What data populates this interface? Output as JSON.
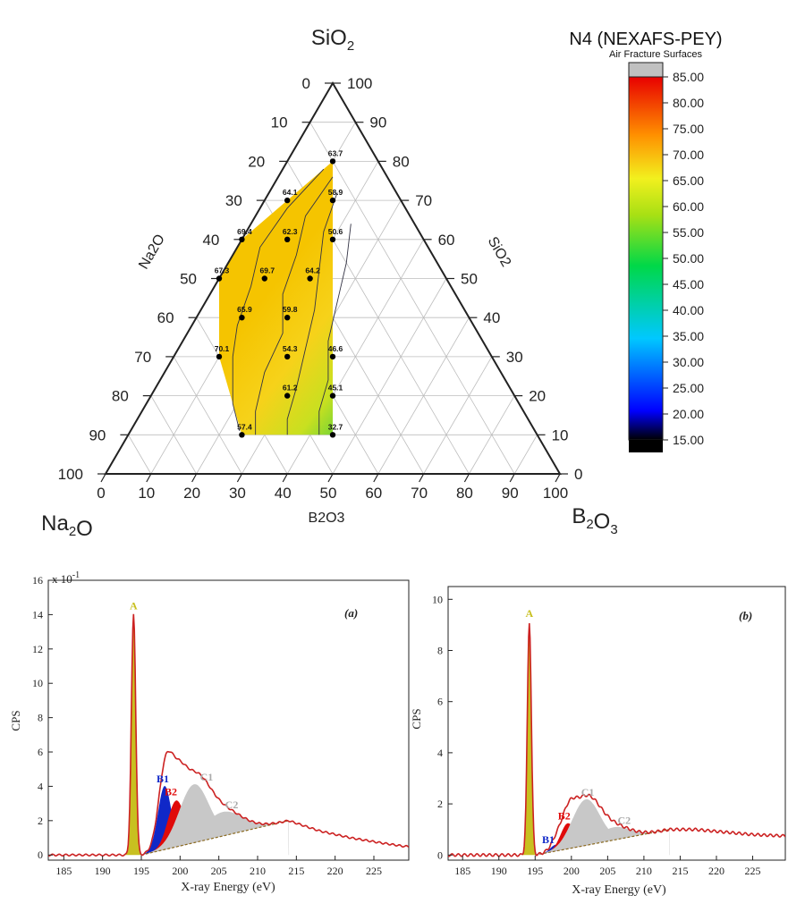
{
  "colors": {
    "frame": "#222222",
    "grid": "#bdbdbd",
    "spectrum": "#cc2222",
    "peakA": "#c8c020",
    "peakB1": "#1028c8",
    "peakB2": "#e00a0a",
    "peakC": "#c8c8c8"
  },
  "chart_data": [
    {
      "type": "ternary-contour",
      "title": "N4 (NEXAFS-PEY)",
      "subtitle": "Air Fracture Surfaces",
      "vertex_labels": {
        "top": "SiO2",
        "left": "Na2O",
        "right": "B2O3"
      },
      "axis_labels": {
        "left": "Na2O",
        "right": "SiO2",
        "bottom": "B2O3"
      },
      "ticks": [
        "0",
        "10",
        "20",
        "30",
        "40",
        "50",
        "60",
        "70",
        "80",
        "90",
        "100"
      ],
      "points": [
        {
          "label": "63.7",
          "SiO2": 80,
          "B2O3": 10
        },
        {
          "label": "64.1",
          "SiO2": 70,
          "B2O3": 5
        },
        {
          "label": "58.9",
          "SiO2": 70,
          "B2O3": 15
        },
        {
          "label": "69.4",
          "SiO2": 60,
          "B2O3": 0
        },
        {
          "label": "62.3",
          "SiO2": 60,
          "B2O3": 10
        },
        {
          "label": "50.6",
          "SiO2": 60,
          "B2O3": 20
        },
        {
          "label": "67.3",
          "SiO2": 50,
          "B2O3": 0
        },
        {
          "label": "69.7",
          "SiO2": 50,
          "B2O3": 10
        },
        {
          "label": "64.2",
          "SiO2": 50,
          "B2O3": 20
        },
        {
          "label": "65.9",
          "SiO2": 40,
          "B2O3": 10
        },
        {
          "label": "59.8",
          "SiO2": 40,
          "B2O3": 20
        },
        {
          "label": "70.1",
          "SiO2": 30,
          "B2O3": 10
        },
        {
          "label": "54.3",
          "SiO2": 30,
          "B2O3": 25
        },
        {
          "label": "46.6",
          "SiO2": 30,
          "B2O3": 35
        },
        {
          "label": "61.2",
          "SiO2": 20,
          "B2O3": 30
        },
        {
          "label": "45.1",
          "SiO2": 20,
          "B2O3": 40
        },
        {
          "label": "57.4",
          "SiO2": 10,
          "B2O3": 25
        },
        {
          "label": "32.7",
          "SiO2": 10,
          "B2O3": 45
        }
      ],
      "colorbar": {
        "ticks": [
          "85.00",
          "80.00",
          "75.00",
          "70.00",
          "65.00",
          "60.00",
          "55.00",
          "50.00",
          "45.00",
          "40.00",
          "35.00",
          "30.00",
          "25.00",
          "20.00",
          "15.00"
        ],
        "range": [
          15,
          85
        ],
        "over_color": "#c0c0c0",
        "under_color": "#000000"
      }
    },
    {
      "type": "area",
      "panel": "(a)",
      "xlabel": "X-ray Energy (eV)",
      "ylabel": "CPS",
      "multiplier": "x 10",
      "multiplier_exp": "-1",
      "xlim": [
        183,
        229.5
      ],
      "ylim": [
        -0.3,
        16
      ],
      "x_ticks": [
        "185",
        "190",
        "195",
        "200",
        "205",
        "210",
        "215",
        "220",
        "225"
      ],
      "y_ticks": [
        "0",
        "2",
        "4",
        "6",
        "8",
        "10",
        "12",
        "14",
        "16"
      ],
      "peaks": [
        {
          "name": "A",
          "center": 194.0,
          "height": 14.0,
          "width": 0.28
        },
        {
          "name": "B1",
          "center": 198.0,
          "height": 3.7,
          "width": 0.85
        },
        {
          "name": "B2",
          "center": 199.5,
          "height": 2.7,
          "width": 1.1
        },
        {
          "name": "C1",
          "center": 201.8,
          "height": 3.4,
          "width": 1.9
        },
        {
          "name": "C2",
          "center": 205.5,
          "height": 1.4,
          "width": 2.5
        }
      ],
      "baseline": {
        "x0": 195.0,
        "x1": 214.0,
        "y0": 0.0,
        "y1": 2.0
      },
      "tail": {
        "x": [
          214,
          218,
          222,
          226,
          229
        ],
        "y": [
          2.0,
          1.4,
          1.0,
          0.7,
          0.5
        ]
      }
    },
    {
      "type": "area",
      "panel": "(b)",
      "xlabel": "X-ray Energy (eV)",
      "ylabel": "CPS",
      "xlim": [
        183,
        229.5
      ],
      "ylim": [
        -0.2,
        10.5
      ],
      "x_ticks": [
        "185",
        "190",
        "195",
        "200",
        "205",
        "210",
        "215",
        "220",
        "225"
      ],
      "y_ticks": [
        "0",
        "2",
        "4",
        "6",
        "8",
        "10"
      ],
      "peaks": [
        {
          "name": "A",
          "center": 194.2,
          "height": 9.1,
          "width": 0.28
        },
        {
          "name": "B1",
          "center": 197.8,
          "height": 0.25,
          "width": 0.7
        },
        {
          "name": "B2",
          "center": 199.5,
          "height": 1.0,
          "width": 1.0
        },
        {
          "name": "C1",
          "center": 202.0,
          "height": 1.8,
          "width": 1.9
        },
        {
          "name": "C2",
          "center": 205.8,
          "height": 0.5,
          "width": 2.2
        }
      ],
      "baseline": {
        "x0": 195.0,
        "x1": 213.5,
        "y0": 0.0,
        "y1": 1.0
      },
      "tail": {
        "x": [
          213.5,
          217,
          221,
          225,
          229
        ],
        "y": [
          1.0,
          1.0,
          0.9,
          0.8,
          0.75
        ]
      }
    }
  ]
}
